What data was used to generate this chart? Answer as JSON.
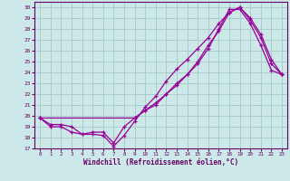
{
  "xlabel": "Windchill (Refroidissement éolien,°C)",
  "bg_color": "#cce8e8",
  "line_color": "#990099",
  "grid_color": "#aacccc",
  "xlim": [
    -0.5,
    23.5
  ],
  "ylim": [
    17,
    30.5
  ],
  "yticks": [
    17,
    18,
    19,
    20,
    21,
    22,
    23,
    24,
    25,
    26,
    27,
    28,
    29,
    30
  ],
  "xticks": [
    0,
    1,
    2,
    3,
    4,
    5,
    6,
    7,
    8,
    9,
    10,
    11,
    12,
    13,
    14,
    15,
    16,
    17,
    18,
    19,
    20,
    21,
    22,
    23
  ],
  "line1_x": [
    0,
    1,
    2,
    3,
    4,
    5,
    6,
    7,
    8,
    9,
    10,
    11,
    12,
    13,
    14,
    15,
    16,
    17,
    18,
    19,
    20,
    21,
    22,
    23
  ],
  "line1_y": [
    19.8,
    19.0,
    19.0,
    18.5,
    18.3,
    18.3,
    18.2,
    17.2,
    18.2,
    19.5,
    20.8,
    21.8,
    23.2,
    24.3,
    25.2,
    26.2,
    27.2,
    28.5,
    29.5,
    30.0,
    29.0,
    27.5,
    25.2,
    23.8
  ],
  "line2_x": [
    0,
    1,
    2,
    3,
    4,
    5,
    6,
    7,
    8,
    9,
    10,
    11,
    12,
    13,
    14,
    15,
    16,
    17,
    18,
    19,
    20,
    21,
    22,
    23
  ],
  "line2_y": [
    19.8,
    19.2,
    19.2,
    19.0,
    18.3,
    18.5,
    18.5,
    17.5,
    19.0,
    19.8,
    20.5,
    21.2,
    22.0,
    23.0,
    23.8,
    24.8,
    26.2,
    28.0,
    29.8,
    29.8,
    28.5,
    26.5,
    24.2,
    23.8
  ],
  "line3_x": [
    0,
    9,
    10,
    11,
    12,
    13,
    14,
    15,
    16,
    17,
    18,
    19,
    20,
    21,
    22,
    23
  ],
  "line3_y": [
    19.8,
    19.8,
    20.5,
    21.0,
    22.0,
    22.8,
    23.8,
    25.0,
    26.5,
    27.8,
    29.5,
    30.0,
    28.8,
    27.2,
    24.8,
    23.8
  ]
}
